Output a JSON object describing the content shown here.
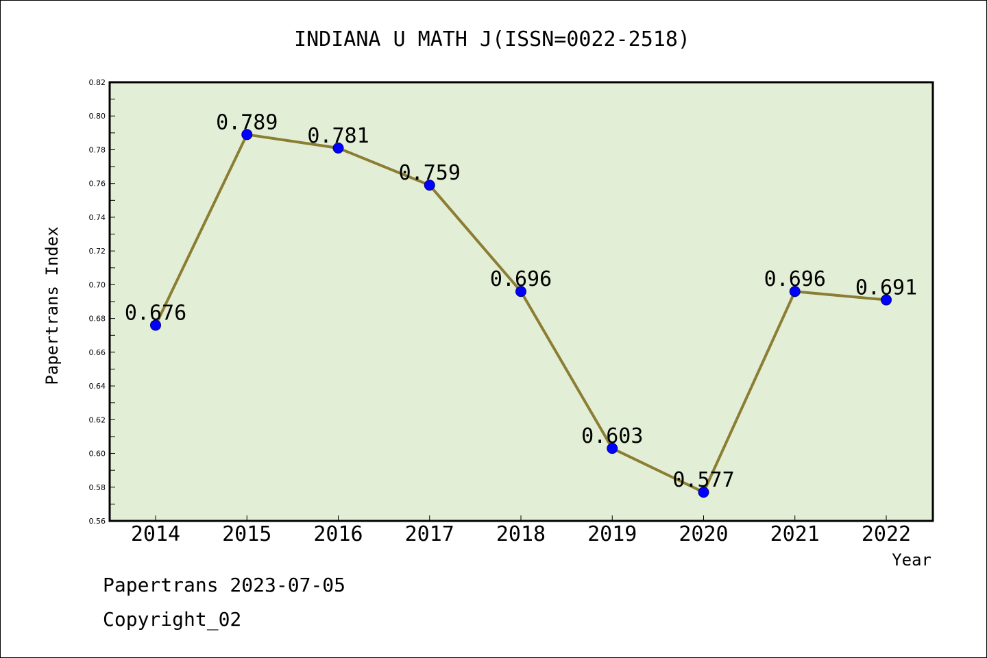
{
  "chart_data": {
    "type": "line",
    "title": "INDIANA U MATH J(ISSN=0022-2518)",
    "xlabel": "Year",
    "ylabel": "Papertrans Index",
    "categories": [
      "2014",
      "2015",
      "2016",
      "2017",
      "2018",
      "2019",
      "2020",
      "2021",
      "2022"
    ],
    "series": [
      {
        "values": [
          0.676,
          0.789,
          0.781,
          0.759,
          0.696,
          0.603,
          0.577,
          0.696,
          0.691
        ],
        "data_labels": [
          "0.676",
          "0.789",
          "0.781",
          "0.759",
          "0.696",
          "0.603",
          "0.577",
          "0.696",
          "0.691"
        ]
      }
    ],
    "ylim": [
      0.56,
      0.82
    ],
    "yticks": [
      "0.56",
      "0.58",
      "0.60",
      "0.62",
      "0.64",
      "0.66",
      "0.68",
      "0.70",
      "0.72",
      "0.74",
      "0.76",
      "0.78",
      "0.80",
      "0.82"
    ],
    "grid": false,
    "legend": "none",
    "colors": {
      "plot_background": "#e2efd6",
      "line": "#8b7d33",
      "marker": "#0000ff",
      "marker_edge": "#000080"
    }
  },
  "footer": {
    "line1": "Papertrans 2023-07-05",
    "line2": "Copyright_02"
  }
}
